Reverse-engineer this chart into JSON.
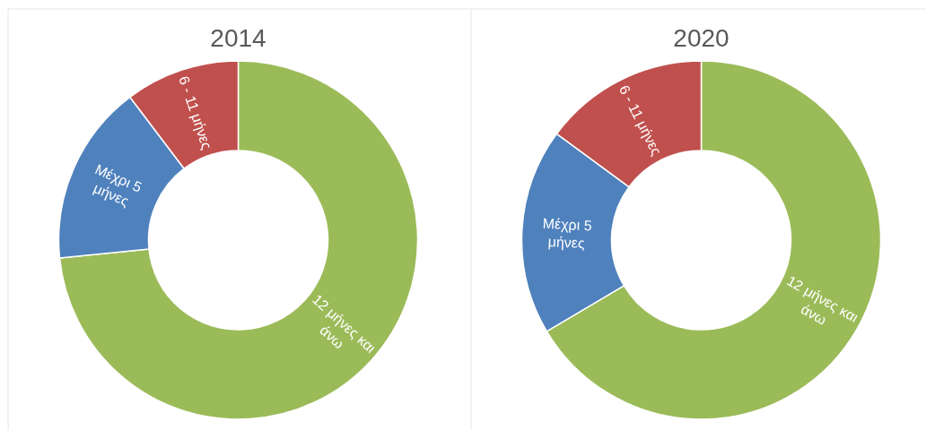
{
  "chart_data": [
    {
      "type": "donut",
      "title": "2014",
      "categories": [
        "12 μήνες και άνω",
        "Μέχρι 5 μήνες",
        "6 - 11 μήνες"
      ],
      "values": [
        73.4,
        16.3,
        10.3
      ],
      "colors": [
        "#9bbb59",
        "#4f81bd",
        "#c0504d"
      ]
    },
    {
      "type": "donut",
      "title": "2020",
      "categories": [
        "12 μήνες και άνω",
        "Μέχρι 5 μήνες",
        "6 - 11 μήνες"
      ],
      "values": [
        66.5,
        18.6,
        14.9
      ],
      "colors": [
        "#9bbb59",
        "#4f81bd",
        "#c0504d"
      ]
    }
  ]
}
